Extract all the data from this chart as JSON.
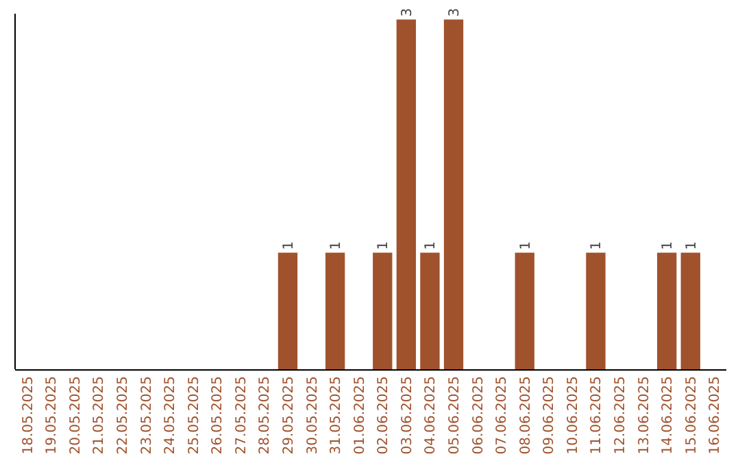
{
  "chart_data": {
    "type": "bar",
    "categories": [
      "18.05.2025",
      "19.05.2025",
      "20.05.2025",
      "21.05.2025",
      "22.05.2025",
      "23.05.2025",
      "24.05.2025",
      "25.05.2025",
      "26.05.2025",
      "27.05.2025",
      "28.05.2025",
      "29.05.2025",
      "30.05.2025",
      "31.05.2025",
      "01.06.2025",
      "02.06.2025",
      "03.06.2025",
      "04.06.2025",
      "05.06.2025",
      "06.06.2025",
      "07.06.2025",
      "08.06.2025",
      "09.06.2025",
      "10.06.2025",
      "11.06.2025",
      "12.06.2025",
      "13.06.2025",
      "14.06.2025",
      "15.06.2025",
      "16.06.2025"
    ],
    "values": [
      0,
      0,
      0,
      0,
      0,
      0,
      0,
      0,
      0,
      0,
      0,
      1,
      0,
      1,
      0,
      1,
      3,
      1,
      3,
      0,
      0,
      1,
      0,
      0,
      1,
      0,
      0,
      1,
      1,
      0
    ],
    "value_labels": [
      null,
      null,
      null,
      null,
      null,
      null,
      null,
      null,
      null,
      null,
      null,
      "1",
      null,
      "1",
      null,
      "1",
      "3",
      "1",
      "3",
      null,
      null,
      "1",
      null,
      null,
      "1",
      null,
      null,
      "1",
      "1",
      null
    ],
    "color": "#a0522d",
    "ylim": [
      0,
      3.05
    ],
    "tick_labels": "x"
  }
}
